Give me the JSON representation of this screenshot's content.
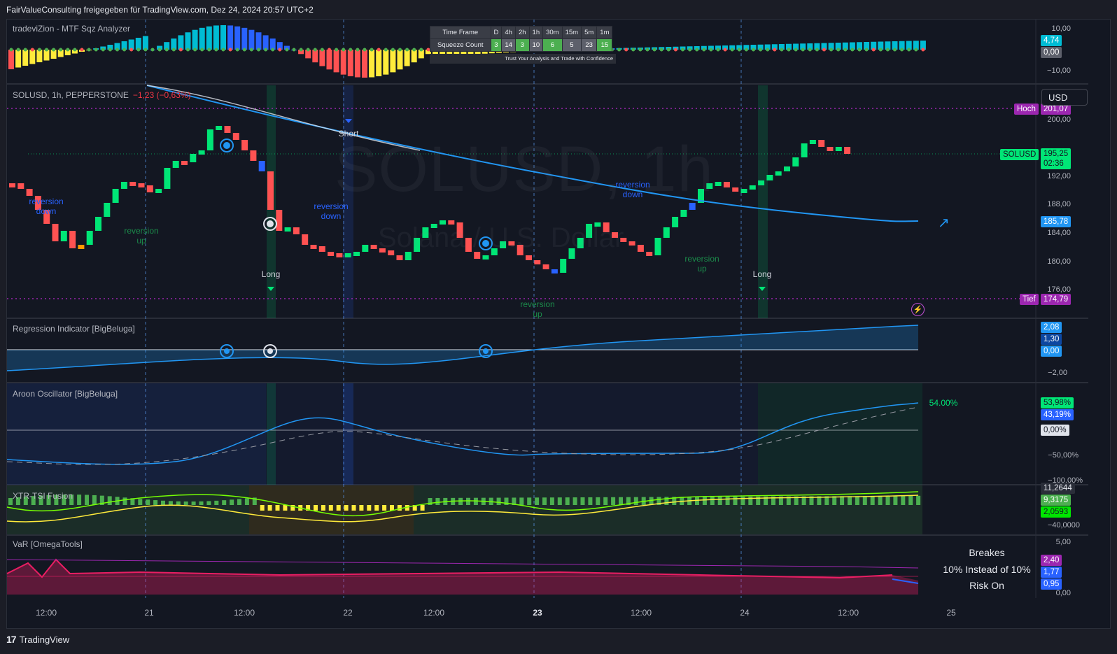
{
  "header": {
    "text": "FairValueConsulting freigegeben für TradingView.com, Dez 24, 2024 20:57 UTC+2"
  },
  "colors": {
    "background": "#131722",
    "grid": "#2a2e39",
    "up": "#00e676",
    "down": "#ff5252",
    "accent_blue": "#2196f3",
    "purple": "#9c27b0",
    "yellow": "#ffeb3b",
    "cyan": "#00bcd4"
  },
  "panes": {
    "sqz": {
      "label": "tradeviZion - MTF Sqz Analyzer",
      "axis": [
        "10,00",
        "−10,00"
      ],
      "tags": [
        "4,74",
        "0,00"
      ],
      "table": {
        "header_label": "Time Frame",
        "timeframes": [
          "D",
          "4h",
          "2h",
          "1h",
          "30m",
          "15m",
          "5m",
          "1m"
        ],
        "row_label": "Squeeze Count",
        "counts": [
          "3",
          "14",
          "3",
          "10",
          "6",
          "5",
          "23",
          "15"
        ],
        "count_styles": [
          "green",
          "gray",
          "green",
          "gray",
          "green",
          "gray",
          "gray",
          "green"
        ],
        "footer": "Trust Your Analysis and Trade with Confidence"
      }
    },
    "price": {
      "symbol": "SOLUSD, 1h, PEPPERSTONE",
      "change": "−1,23 (−0,63%)",
      "watermark_symbol": "SOLUSD, 1h",
      "watermark_name": "Solana / U.S. Dollar",
      "currency_button": "USD",
      "axis": [
        "200,00",
        "196,00",
        "192,00",
        "188,00",
        "184,00",
        "180,00",
        "176,00"
      ],
      "high_label": "Hoch",
      "high_value": "201,07",
      "low_label": "Tief",
      "low_value": "174,79",
      "last_symbol": "SOLUSD",
      "last_price": "195,25",
      "countdown": "02:36",
      "ma_value": "185,78",
      "signals": {
        "short": "Short",
        "long": "Long",
        "reversion_down": [
          "reversion",
          "down"
        ],
        "reversion_up": [
          "reversion",
          "up"
        ]
      }
    },
    "regression": {
      "label": "Regression Indicator [BigBeluga]",
      "axis": [
        "−2,00"
      ],
      "tags": [
        "2,08",
        "1,30",
        "0,00"
      ]
    },
    "aroon": {
      "label": "Aroon Oscillator [BigBeluga]",
      "axis": [
        "−50,00%",
        "−100,00%"
      ],
      "tags": [
        "53,98%",
        "43,19%",
        "0,00%"
      ],
      "value_note": "54.00%"
    },
    "xtr": {
      "label": "XTR-TSI Fusion",
      "axis": [
        "−40,0000"
      ],
      "tags": [
        "11,2644",
        "9,3175",
        "2,0593"
      ]
    },
    "var": {
      "label": "VaR [OmegaTools]",
      "axis": [
        "5,00",
        "0,00"
      ],
      "tags": [
        "2,40",
        "1,77",
        "0,95"
      ],
      "lines": [
        "Breakes",
        "10% Instead of 10%",
        "Risk On"
      ]
    }
  },
  "time_axis": [
    "12:00",
    "21",
    "12:00",
    "22",
    "12:00",
    "23",
    "12:00",
    "24",
    "12:00",
    "25"
  ],
  "footer": {
    "brand": "TradingView"
  },
  "icons": {
    "lightning": "lightning-icon",
    "arrow": "arrow-up-right-icon",
    "logo": "tradingview-logo-icon"
  }
}
